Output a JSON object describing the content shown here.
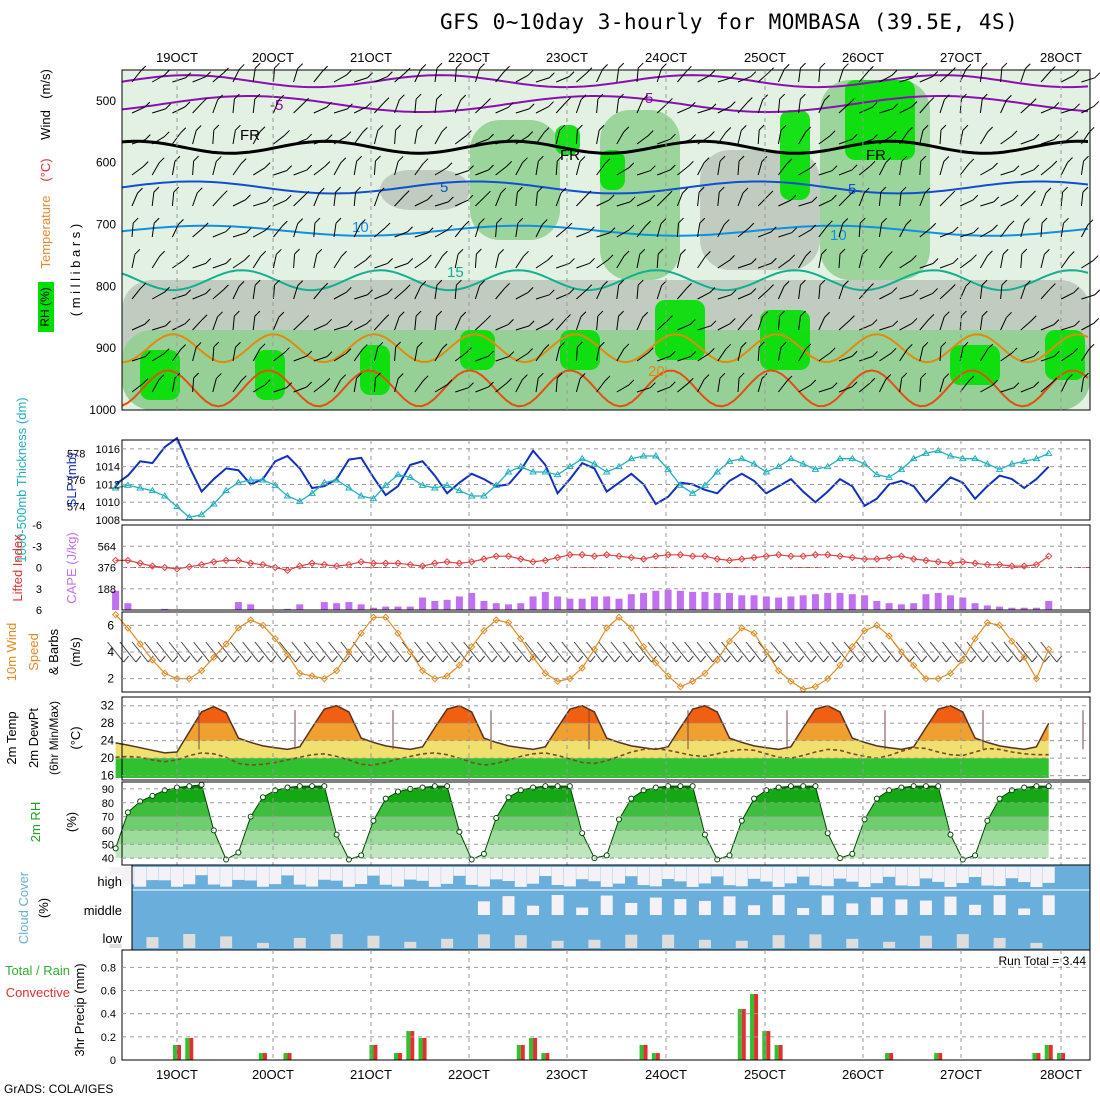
{
  "title": "GFS 0~10day 3-hourly for MOMBASA (39.5E, 4S)",
  "credit": "GrADS: COLA/IGES",
  "colors": {
    "rh_green_light": "#e3f1e3",
    "rh_green_mid": "#8fd08f",
    "rh_green_bright": "#00e000",
    "rh_gray": "#b9c5b9",
    "wind_line": "#000000",
    "temp_minus5": "#8a10b0",
    "temp_freezing": "#000000",
    "temp_5": "#1050d0",
    "temp_10": "#1090e0",
    "temp_15": "#10b090",
    "temp_20": "#e08a10",
    "temp_25": "#e05010",
    "thickness": "#20b0c0",
    "slp": "#1030c0",
    "lifted_index": "#e04040",
    "cape_bar": "#c070f0",
    "wind_speed": "#e08a20",
    "temp_fill_hot": "#f06010",
    "temp_fill_warm": "#f0a030",
    "temp_fill_mild": "#f0e070",
    "dewpoint_green": "#30c030",
    "rh2m_dark": "#008000",
    "cloud_blue": "#6aaedb",
    "cloud_clear": "#f4f2f6",
    "precip_green": "#30c030",
    "precip_red": "#e03030",
    "grid": "#999999"
  },
  "x_axis": {
    "dates_top": [
      "19OCT",
      "20OCT",
      "21OCT",
      "22OCT",
      "23OCT",
      "24OCT",
      "25OCT",
      "26OCT",
      "27OCT",
      "28OCT"
    ],
    "dates_bottom": [
      "19OCT",
      "20OCT",
      "21OCT",
      "22OCT",
      "23OCT",
      "24OCT",
      "25OCT",
      "26OCT",
      "27OCT",
      "28OCT"
    ]
  },
  "panels": {
    "upper_air": {
      "ylabel_parts": [
        "RH (%)",
        "Temperature",
        "(°C)",
        "Wind",
        "(m/s)"
      ],
      "ylabel_millibars": "( m i l l i b a r s )",
      "y_ticks": [
        "500",
        "600",
        "700",
        "800",
        "900",
        "1000"
      ],
      "contour_labels": [
        "-5",
        "-5",
        "FR",
        "FR",
        "FR",
        "5",
        "5",
        "10",
        "10",
        "15",
        "20"
      ]
    },
    "pressure": {
      "ylabel_left": "1000-500mb Thickness (dm)",
      "ylabel_right": "SLP (mb)",
      "left_ticks": [
        "578",
        "576",
        "574"
      ],
      "right_ticks": [
        "1016",
        "1014",
        "1012",
        "1010",
        "1008"
      ]
    },
    "convective": {
      "ylabel_left": "Lifted Index",
      "ylabel_right": "CAPE (J/kg)",
      "left_ticks": [
        "-6",
        "-3",
        "0",
        "3",
        "6"
      ],
      "right_ticks": [
        "564",
        "376",
        "188"
      ]
    },
    "wind10m": {
      "ylabel": "10m Wind Speed & Barbs (m/s)",
      "ylabel_parts": [
        "10m Wind",
        "Speed",
        "& Barbs",
        "(m/s)"
      ],
      "ticks": [
        "6",
        "4",
        "2"
      ]
    },
    "temp2m": {
      "ylabel_parts": [
        "2m Temp",
        "2m DewPt",
        "(6hr Min/Max)",
        "(°C)"
      ],
      "ticks": [
        "32",
        "28",
        "24",
        "20",
        "16"
      ]
    },
    "rh2m": {
      "ylabel_parts": [
        "2m RH",
        "(%)"
      ],
      "ticks": [
        "90",
        "80",
        "70",
        "60",
        "50",
        "40"
      ]
    },
    "cloud": {
      "ylabel_parts": [
        "Cloud Cover",
        "(%)"
      ],
      "levels": [
        "high",
        "middle",
        "low"
      ]
    },
    "precip": {
      "ylabel_parts": [
        "Total / Rain",
        "Convective",
        "3hr Precip (mm)"
      ],
      "ticks": [
        "0.8",
        "0.6",
        "0.4",
        "0.2",
        "0"
      ],
      "run_total": "Run Total = 3.44"
    }
  },
  "chart_data": [
    {
      "type": "line",
      "title": "1000-500mb Thickness (dm) / SLP (mb)",
      "x_unit": "3-hourly steps from 18OCT 12Z",
      "series": [
        {
          "name": "SLP (mb)",
          "values": [
            1012.0,
            1013.0,
            1014.6,
            1014.4,
            1016.2,
            1017.2,
            1014.0,
            1011.2,
            1012.6,
            1013.8,
            1013.6,
            1012.0,
            1012.6,
            1014.6,
            1015.2,
            1013.8,
            1011.6,
            1011.8,
            1012.6,
            1014.8,
            1015.0,
            1012.8,
            1010.8,
            1011.8,
            1014.2,
            1014.6,
            1013.0,
            1011.0,
            1012.2,
            1013.2,
            1012.6,
            1011.8,
            1012.0,
            1013.6,
            1015.8,
            1014.2,
            1011.0,
            1012.6,
            1014.4,
            1013.8,
            1011.2,
            1012.2,
            1013.2,
            1012.0,
            1009.8,
            1010.6,
            1012.2,
            1012.0,
            1011.4,
            1011.0,
            1012.4,
            1013.2,
            1012.4,
            1011.0,
            1011.8,
            1012.6,
            1011.2,
            1010.0,
            1011.2,
            1012.6,
            1011.8,
            1009.6,
            1010.4,
            1012.0,
            1012.4,
            1011.8,
            1010.0,
            1011.4,
            1012.8,
            1012.2,
            1010.4,
            1011.8,
            1013.0,
            1012.6,
            1011.6,
            1012.6,
            1014.0
          ]
        },
        {
          "name": "1000-500mb Thickness (dm)",
          "values": [
            575.4,
            575.6,
            575.4,
            575.2,
            574.8,
            574.0,
            573.2,
            573.4,
            574.2,
            575.2,
            575.8,
            576.0,
            576.0,
            575.6,
            574.8,
            574.4,
            575.0,
            575.8,
            576.0,
            575.4,
            574.8,
            574.6,
            575.6,
            576.4,
            576.2,
            575.6,
            575.4,
            575.6,
            575.2,
            574.8,
            574.8,
            575.6,
            576.6,
            577.0,
            576.6,
            576.6,
            576.4,
            577.0,
            577.6,
            577.2,
            576.6,
            577.0,
            577.6,
            577.8,
            577.8,
            576.8,
            575.6,
            575.0,
            575.6,
            576.6,
            577.4,
            577.6,
            577.2,
            576.6,
            577.0,
            577.6,
            577.2,
            576.8,
            577.0,
            577.6,
            577.6,
            577.2,
            576.4,
            576.2,
            576.8,
            577.6,
            578.0,
            578.2,
            577.8,
            577.6,
            577.6,
            577.2,
            576.8,
            577.2,
            577.4,
            577.6,
            578.0
          ]
        }
      ],
      "ylim_slp": [
        1008,
        1017
      ],
      "ylim_thickness": [
        573,
        579
      ]
    },
    {
      "type": "bar",
      "title": "CAPE (J/kg) / Lifted Index",
      "series": [
        {
          "name": "CAPE (J/kg)",
          "values": [
            170,
            60,
            0,
            0,
            10,
            0,
            0,
            0,
            0,
            0,
            70,
            50,
            0,
            0,
            10,
            50,
            0,
            70,
            60,
            70,
            50,
            20,
            30,
            30,
            30,
            110,
            80,
            90,
            120,
            150,
            80,
            60,
            50,
            60,
            120,
            160,
            120,
            100,
            100,
            120,
            120,
            100,
            140,
            150,
            170,
            180,
            170,
            160,
            160,
            150,
            150,
            130,
            130,
            120,
            110,
            120,
            130,
            140,
            150,
            150,
            140,
            130,
            80,
            60,
            50,
            60,
            140,
            150,
            130,
            110,
            60,
            40,
            30,
            20,
            20,
            20,
            80
          ]
        },
        {
          "name": "Lifted Index",
          "values": [
            -1,
            -1,
            -0.6,
            -0.2,
            0,
            0.2,
            -0.1,
            -0.4,
            -0.8,
            -1,
            -1,
            -0.6,
            -0.4,
            0,
            0.4,
            -0.2,
            -0.6,
            -0.4,
            -0.2,
            -0.4,
            -0.8,
            -0.6,
            -0.6,
            -0.6,
            -0.4,
            -0.2,
            -0.6,
            -0.8,
            -0.6,
            -0.8,
            -1.2,
            -1.6,
            -1.6,
            -1.2,
            -0.8,
            -1.0,
            -1.4,
            -1.8,
            -1.8,
            -1.6,
            -1.8,
            -1.6,
            -1.4,
            -1.2,
            -1.6,
            -1.8,
            -1.8,
            -1.6,
            -1.6,
            -1.2,
            -1.0,
            -1.2,
            -1.4,
            -1.6,
            -1.8,
            -1.6,
            -1.6,
            -1.8,
            -1.8,
            -1.6,
            -1.4,
            -1.2,
            -1.2,
            -1.4,
            -1.6,
            -1.2,
            -1.0,
            -0.8,
            -0.6,
            -0.8,
            -0.6,
            -0.4,
            -0.4,
            -0.2,
            -0.2,
            -0.4,
            -1.6
          ]
        }
      ],
      "ylim_cape": [
        0,
        752
      ],
      "ylim_li": [
        6,
        -6
      ]
    },
    {
      "type": "line",
      "title": "10m Wind Speed (m/s)",
      "series": [
        {
          "name": "10m Wind Speed (m/s)",
          "values": [
            6.8,
            5.8,
            4.6,
            3.4,
            2.4,
            2.0,
            2.0,
            2.6,
            3.6,
            4.6,
            5.8,
            6.4,
            6.0,
            5.0,
            3.8,
            2.4,
            2.2,
            2.0,
            2.6,
            4.0,
            5.4,
            6.6,
            6.6,
            5.4,
            4.0,
            2.6,
            2.0,
            2.2,
            3.0,
            4.4,
            5.6,
            6.4,
            6.2,
            5.0,
            3.6,
            2.4,
            1.8,
            2.0,
            2.8,
            4.2,
            5.8,
            6.6,
            5.8,
            4.4,
            3.2,
            2.2,
            1.4,
            1.8,
            2.4,
            3.4,
            4.8,
            5.8,
            5.4,
            4.0,
            2.6,
            1.8,
            1.2,
            1.4,
            2.0,
            3.0,
            4.4,
            5.6,
            6.0,
            5.2,
            4.0,
            3.0,
            2.0,
            2.0,
            2.4,
            3.4,
            5.0,
            6.2,
            6.0,
            4.8,
            3.6,
            2.0,
            4.2
          ]
        }
      ],
      "ylim": [
        1,
        7
      ]
    },
    {
      "type": "area",
      "title": "2m Temp / 2m DewPt (°C)",
      "series": [
        {
          "name": "2m Temp (°C)",
          "values": [
            23.5,
            23.0,
            22.4,
            21.8,
            21.2,
            21.4,
            26,
            30.6,
            31.8,
            30.4,
            24.6,
            23.6,
            22.8,
            22.4,
            22,
            22.6,
            27,
            31.2,
            32,
            30.6,
            24.6,
            23.6,
            22.8,
            22.4,
            22,
            22.6,
            27,
            31.2,
            32,
            30.6,
            24.6,
            23.6,
            22.8,
            22.4,
            22,
            22.6,
            27,
            31.2,
            32,
            30.6,
            24.6,
            23.6,
            22.8,
            22.4,
            22,
            22.6,
            27,
            31.2,
            32,
            30.6,
            24.6,
            23.6,
            22.8,
            22.4,
            22,
            22.6,
            27,
            31.2,
            32,
            30.6,
            24.6,
            23.6,
            22.8,
            22.4,
            22,
            22.6,
            27,
            31.2,
            32,
            30.6,
            24.6,
            23.6,
            22.8,
            22.4,
            22,
            22.6,
            28
          ]
        },
        {
          "name": "2m DewPt (°C)",
          "values": [
            20.2,
            20.4,
            20.2,
            19.6,
            19.2,
            19.6,
            20.6,
            21.2,
            21.0,
            20.2,
            18.8,
            18.4,
            18.6,
            19.0,
            19.6,
            20.2,
            20.8,
            21.0,
            20.4,
            19.6,
            18.6,
            18.4,
            19.0,
            19.8,
            20.4,
            21.0,
            21.2,
            20.8,
            20.0,
            19.0,
            18.4,
            18.8,
            19.6,
            20.4,
            21.0,
            21.2,
            20.6,
            19.8,
            19.0,
            18.8,
            19.4,
            20.4,
            21.4,
            22.0,
            22.2,
            21.8,
            21.2,
            20.6,
            20.4,
            21.0,
            21.6,
            22.0,
            21.8,
            21.0,
            20.2,
            20.0,
            20.6,
            21.4,
            22.0,
            21.8,
            21.0,
            20.4,
            20.0,
            20.6,
            21.6,
            22.4,
            22.2,
            21.4,
            20.8,
            20.6,
            21.4,
            22.2,
            22.0,
            21.4,
            21.0,
            20.8,
            20.8
          ]
        }
      ],
      "ylim": [
        15,
        34
      ]
    },
    {
      "type": "area",
      "title": "2m RH (%)",
      "series": [
        {
          "name": "2m RH (%)",
          "values": [
            47,
            73,
            81,
            85,
            89,
            91,
            92,
            93,
            60,
            39,
            44,
            70,
            84,
            89,
            91,
            92,
            92,
            92,
            57,
            39,
            42,
            67,
            83,
            88,
            90,
            91,
            92,
            92,
            59,
            39,
            43,
            69,
            84,
            89,
            91,
            92,
            92,
            92,
            58,
            40,
            42,
            68,
            83,
            89,
            91,
            92,
            92,
            92,
            57,
            39,
            42,
            67,
            83,
            89,
            91,
            92,
            92,
            92,
            58,
            40,
            43,
            68,
            83,
            89,
            91,
            92,
            92,
            92,
            57,
            39,
            42,
            67,
            83,
            89,
            91,
            92,
            92
          ]
        }
      ],
      "ylim": [
        35,
        95
      ]
    },
    {
      "type": "bar",
      "title": "3hr Precip (mm)",
      "run_total_mm": 3.44,
      "series": [
        {
          "name": "Total",
          "values": [
            0,
            0,
            0,
            0,
            0,
            0.13,
            0.19,
            0,
            0,
            0,
            0,
            0,
            0.06,
            0,
            0.06,
            0,
            0,
            0,
            0,
            0,
            0,
            0.13,
            0,
            0.06,
            0.25,
            0.19,
            0,
            0,
            0,
            0,
            0,
            0,
            0,
            0.13,
            0.19,
            0.06,
            0,
            0,
            0,
            0,
            0,
            0,
            0,
            0.13,
            0.06,
            0,
            0,
            0,
            0,
            0,
            0,
            0.44,
            0.57,
            0.25,
            0.13,
            0,
            0,
            0,
            0,
            0,
            0,
            0,
            0,
            0.06,
            0,
            0,
            0,
            0.06,
            0,
            0,
            0,
            0,
            0,
            0,
            0,
            0.06,
            0.13,
            0.06,
            0,
            0,
            0,
            0,
            0,
            0,
            0,
            0,
            0,
            0
          ]
        },
        {
          "name": "Convective",
          "values": [
            0,
            0,
            0,
            0,
            0,
            0.13,
            0.19,
            0,
            0,
            0,
            0,
            0,
            0.06,
            0,
            0.06,
            0,
            0,
            0,
            0,
            0,
            0,
            0.13,
            0,
            0.06,
            0.25,
            0.19,
            0,
            0,
            0,
            0,
            0,
            0,
            0,
            0.13,
            0.19,
            0.06,
            0,
            0,
            0,
            0,
            0,
            0,
            0,
            0.13,
            0.06,
            0,
            0,
            0,
            0,
            0,
            0,
            0.44,
            0.57,
            0.25,
            0.13,
            0,
            0,
            0,
            0,
            0,
            0,
            0,
            0,
            0.06,
            0,
            0,
            0,
            0.06,
            0,
            0,
            0,
            0,
            0,
            0,
            0,
            0.06,
            0.13,
            0.06,
            0,
            0,
            0,
            0,
            0,
            0,
            0,
            0,
            0,
            0
          ]
        }
      ],
      "ylim": [
        0,
        0.95
      ]
    }
  ]
}
